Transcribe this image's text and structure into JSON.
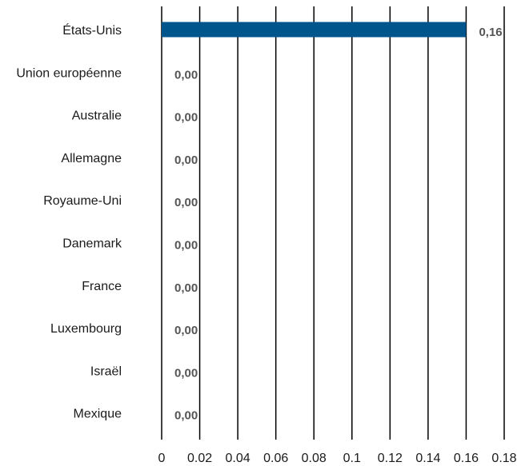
{
  "chart_data": {
    "type": "bar",
    "orientation": "horizontal",
    "categories": [
      "États-Unis",
      "Union européenne",
      "Australie",
      "Allemagne",
      "Royaume-Uni",
      "Danemark",
      "France",
      "Luxembourg",
      "Israël",
      "Mexique"
    ],
    "values": [
      0.16,
      0,
      0,
      0,
      0,
      0,
      0,
      0,
      0,
      0
    ],
    "data_labels": [
      "0,16",
      "0,00",
      "0,00",
      "0,00",
      "0,00",
      "0,00",
      "0,00",
      "0,00",
      "0,00",
      "0,00"
    ],
    "xticks": [
      0,
      0.02,
      0.04,
      0.06,
      0.08,
      0.1,
      0.12,
      0.14,
      0.16,
      0.18
    ],
    "xtick_labels": [
      "0",
      "0.02",
      "0.04",
      "0.06",
      "0.08",
      "0.1",
      "0.12",
      "0.14",
      "0.16",
      "0.18"
    ],
    "xlim": [
      0,
      0.18
    ],
    "grid": true,
    "legend": "none",
    "colors": {
      "bar": "#00558c",
      "grid": "#000000"
    }
  }
}
